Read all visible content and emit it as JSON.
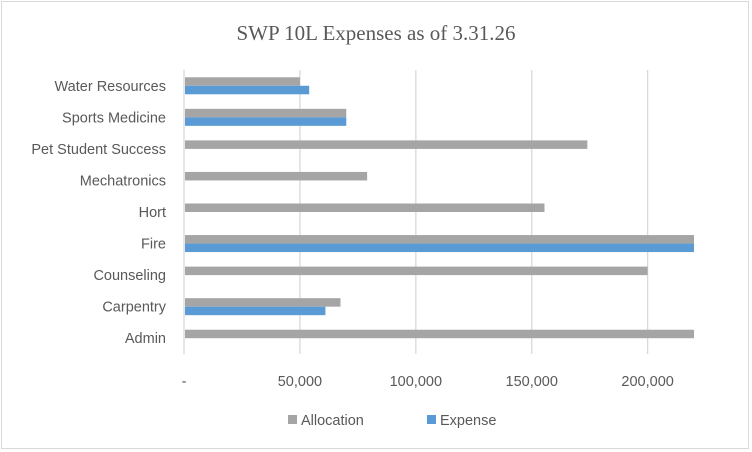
{
  "chart_data": {
    "type": "bar",
    "orientation": "horizontal",
    "title": "SWP 10L Expenses as of 3.31.26",
    "xlabel": "",
    "ylabel": "",
    "categories": [
      "Water Resources",
      "Sports Medicine",
      "Pet Student Success",
      "Mechatronics",
      "Hort",
      "Fire",
      "Counseling",
      "Carpentry",
      "Admin"
    ],
    "series": [
      {
        "name": "Allocation",
        "color": "#a5a5a5",
        "values": [
          50000,
          70000,
          174000,
          79000,
          155500,
          220000,
          200000,
          67500,
          220000
        ]
      },
      {
        "name": "Expense",
        "color": "#5b9bd5",
        "values": [
          54000,
          70000,
          null,
          null,
          null,
          220000,
          null,
          61000,
          null
        ]
      }
    ],
    "xlim": [
      0,
      220000
    ],
    "xticks": [
      0,
      50000,
      100000,
      150000,
      200000
    ],
    "xtick_labels": [
      "-",
      "50,000",
      "100,000",
      "150,000",
      "200,000"
    ],
    "grid": "vertical",
    "legend": "bottom"
  }
}
